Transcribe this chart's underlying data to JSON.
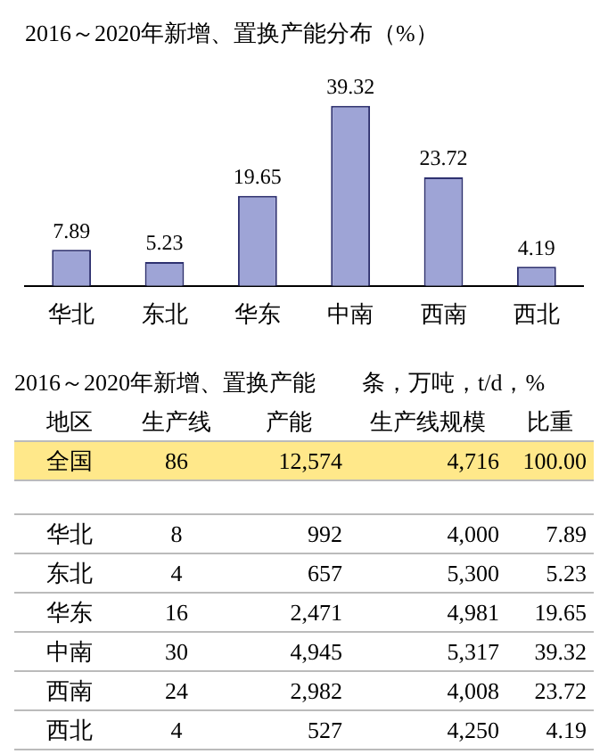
{
  "chart_data": [
    {
      "type": "bar",
      "title": "2016～2020年新增、置换产能分布（%）",
      "categories": [
        "华北",
        "东北",
        "华东",
        "中南",
        "西南",
        "西北"
      ],
      "values": [
        7.89,
        5.23,
        19.65,
        39.32,
        23.72,
        4.19
      ],
      "color": "#9ea4d6",
      "data_labels": true,
      "legend": false,
      "grid": false
    },
    {
      "type": "other",
      "title": "2016～2020年新增、置换产能　　条，万吨，t/d，%",
      "annotations": [
        "地区",
        "生产线",
        "产能",
        "生产线规模",
        "比重",
        "全国",
        "86",
        "12,574",
        "4,716",
        "100.00",
        "华北",
        "8",
        "992",
        "4,000",
        "7.89",
        "东北",
        "4",
        "657",
        "5,300",
        "5.23",
        "华东",
        "16",
        "2,471",
        "4,981",
        "19.65",
        "中南",
        "30",
        "4,945",
        "5,317",
        "39.32",
        "西南",
        "24",
        "2,982",
        "4,008",
        "23.72",
        "西北",
        "4",
        "527",
        "4,250",
        "4.19"
      ]
    }
  ]
}
